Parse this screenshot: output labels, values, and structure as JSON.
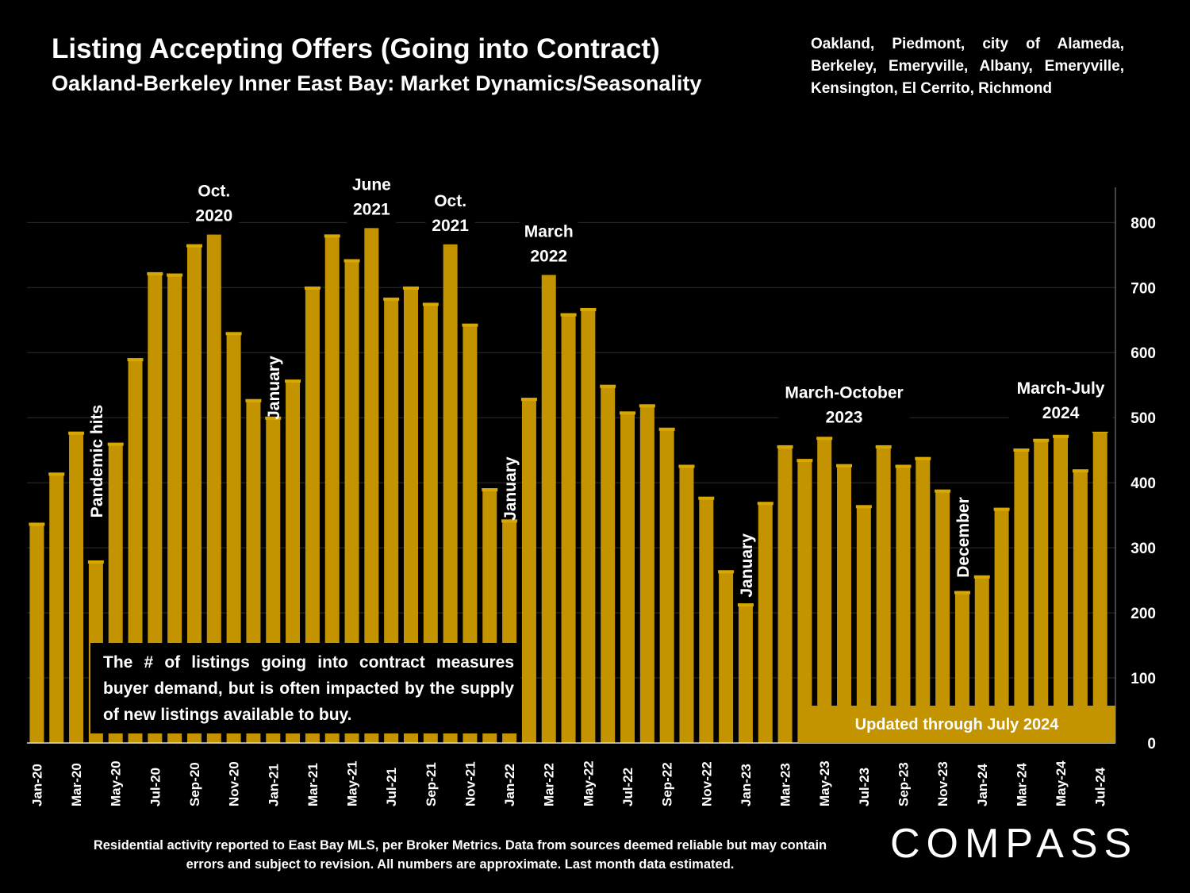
{
  "header": {
    "title": "Listing Accepting Offers (Going into Contract)",
    "subtitle": "Oakland-Berkeley Inner East Bay: Market Dynamics/Seasonality",
    "areas": "Oakland, Piedmont, city of Alameda, Berkeley, Emeryville, Albany, Emeryville, Kensington, El Cerrito, Richmond"
  },
  "footer": {
    "note": "Residential activity reported to East Bay MLS, per Broker Metrics. Data from sources deemed reliable but may contain errors and subject to revision. All numbers are approximate. Last month data estimated.",
    "logo": "COMPASS"
  },
  "colors": {
    "bar": "#C49400",
    "background": "#000000",
    "grid": "#2e2e2e",
    "text": "#ffffff"
  },
  "chart_data": {
    "type": "bar",
    "title": "Listing Accepting Offers (Going into Contract)",
    "ylim": [
      0,
      850
    ],
    "y_ticks": [
      0,
      100,
      200,
      300,
      400,
      500,
      600,
      700,
      800
    ],
    "y_axis_side": "right",
    "grid": true,
    "categories": [
      "Jan-20",
      "Feb-20",
      "Mar-20",
      "Apr-20",
      "May-20",
      "Jun-20",
      "Jul-20",
      "Aug-20",
      "Sep-20",
      "Oct-20",
      "Nov-20",
      "Dec-20",
      "Jan-21",
      "Feb-21",
      "Mar-21",
      "Apr-21",
      "May-21",
      "Jun-21",
      "Jul-21",
      "Aug-21",
      "Sep-21",
      "Oct-21",
      "Nov-21",
      "Dec-21",
      "Jan-22",
      "Feb-22",
      "Mar-22",
      "Apr-22",
      "May-22",
      "Jun-22",
      "Jul-22",
      "Aug-22",
      "Sep-22",
      "Oct-22",
      "Nov-22",
      "Dec-22",
      "Jan-23",
      "Feb-23",
      "Mar-23",
      "Apr-23",
      "May-23",
      "Jun-23",
      "Jul-23",
      "Aug-23",
      "Sep-23",
      "Oct-23",
      "Nov-23",
      "Dec-23",
      "Jan-24",
      "Feb-24",
      "Mar-24",
      "Apr-24",
      "May-24",
      "Jun-24",
      "Jul-24"
    ],
    "x_tick_labels_every": 2,
    "values": [
      335,
      412,
      475,
      277,
      458,
      588,
      720,
      718,
      763,
      793,
      628,
      525,
      498,
      555,
      698,
      778,
      740,
      803,
      681,
      698,
      673,
      780,
      641,
      388,
      340,
      527,
      726,
      657,
      665,
      547,
      506,
      517,
      481,
      424,
      375,
      262,
      211,
      367,
      454,
      433,
      467,
      425,
      362,
      454,
      424,
      436,
      386,
      230,
      254,
      358,
      449,
      464,
      470,
      417,
      478
    ],
    "annotations": [
      {
        "text": "Pandemic hits",
        "category": "Apr-20",
        "value": 520,
        "rotated": true
      },
      {
        "text": "Oct.\n2020",
        "category": "Oct-20",
        "value": 840,
        "rotated": false
      },
      {
        "text": "January",
        "category": "Jan-21",
        "value": 595,
        "rotated": true
      },
      {
        "text": "June\n2021",
        "category": "Jun-21",
        "value": 850,
        "rotated": false
      },
      {
        "text": "Oct.\n2021",
        "category": "Oct-21",
        "value": 825,
        "rotated": false
      },
      {
        "text": "January",
        "category": "Jan-22",
        "value": 440,
        "rotated": true
      },
      {
        "text": "March\n2022",
        "category": "Mar-22",
        "value": 778,
        "rotated": false
      },
      {
        "text": "January",
        "category": "Jan-23",
        "value": 322,
        "rotated": true
      },
      {
        "text": "March-October\n2023",
        "category": "Jun-23",
        "value": 530,
        "rotated": false
      },
      {
        "text": "December",
        "category": "Dec-23",
        "value": 378,
        "rotated": true
      },
      {
        "text": "March-July\n2024",
        "category": "May-24",
        "value": 537,
        "rotated": false
      }
    ],
    "callout": "The # of listings going into contract measures buyer demand, but is often impacted by the supply of new listings available to buy.",
    "updated_label": "Updated through July 2024"
  }
}
